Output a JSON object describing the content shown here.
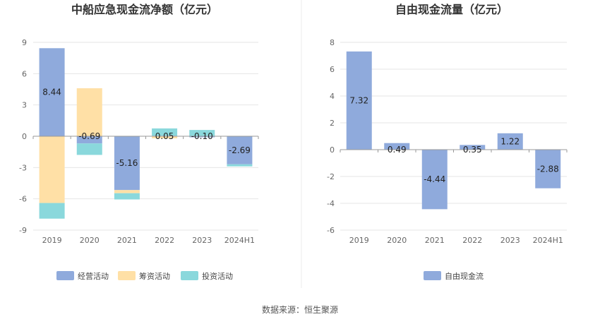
{
  "source_label": "数据来源：恒生聚源",
  "colors": {
    "operating": "#8faadc",
    "financing": "#ffe0a6",
    "investing": "#8ad8dc",
    "fcf": "#8faadc",
    "grid": "#e6e6e6",
    "axis": "#999999",
    "divider": "#eeeeee"
  },
  "chart_data": [
    {
      "type": "bar",
      "stacked": true,
      "title": "中船应急现金流净额（亿元）",
      "categories": [
        "2019",
        "2020",
        "2021",
        "2022",
        "2023",
        "2024H1"
      ],
      "ylim": [
        -9,
        9
      ],
      "yticks": [
        9,
        6,
        3,
        0,
        -3,
        -6,
        -9
      ],
      "grid": true,
      "legend": "bottom",
      "series": [
        {
          "name": "经营活动",
          "key": "operating",
          "values": [
            8.44,
            -0.69,
            -5.16,
            0.05,
            -0.1,
            -2.69
          ]
        },
        {
          "name": "筹资活动",
          "key": "financing",
          "values": [
            -6.4,
            4.6,
            -0.3,
            -0.2,
            0.0,
            0.0
          ]
        },
        {
          "name": "投资活动",
          "key": "investing",
          "values": [
            -1.5,
            -1.1,
            -0.6,
            0.7,
            0.6,
            -0.2
          ]
        }
      ],
      "data_labels": [
        "8.44",
        "-0.69",
        "-5.16",
        "0.05",
        "-0.10",
        "-2.69"
      ]
    },
    {
      "type": "bar",
      "title": "自由现金流量（亿元）",
      "categories": [
        "2019",
        "2020",
        "2021",
        "2022",
        "2023",
        "2024H1"
      ],
      "ylim": [
        -6,
        8
      ],
      "yticks": [
        8,
        6,
        4,
        2,
        0,
        -2,
        -4,
        -6
      ],
      "grid": true,
      "legend": "bottom",
      "series": [
        {
          "name": "自由现金流",
          "key": "fcf",
          "values": [
            7.32,
            0.49,
            -4.44,
            0.35,
            1.22,
            -2.88
          ]
        }
      ],
      "data_labels": [
        "7.32",
        "0.49",
        "-4.44",
        "0.35",
        "1.22",
        "-2.88"
      ]
    }
  ]
}
